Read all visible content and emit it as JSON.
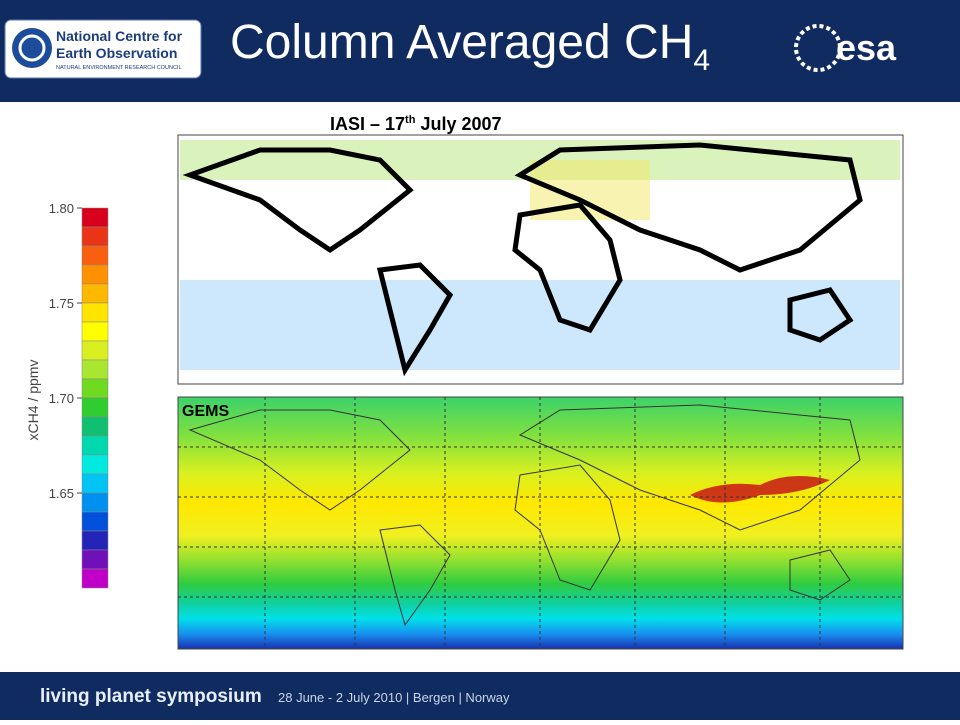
{
  "header": {
    "logo_line1": "National Centre for",
    "logo_line2": "Earth Observation",
    "logo_line3": "NATURAL ENVIRONMENT RESEARCH COUNCIL",
    "title": "Column Averaged CH",
    "title_subscript": "4",
    "esa": "esa"
  },
  "maps": {
    "top_title": "IASI – 17",
    "top_title_sup": "th",
    "top_title_rest": " July 2007",
    "bottom_label": "GEMS"
  },
  "colorbar": {
    "label": "xCH4 / ppmv",
    "lim": [
      1.6,
      1.8
    ],
    "ticks": [
      {
        "value": 1.8,
        "label": "1.80"
      },
      {
        "value": 1.75,
        "label": "1.75"
      },
      {
        "value": 1.7,
        "label": "1.70"
      },
      {
        "value": 1.65,
        "label": "1.65"
      }
    ],
    "colors": [
      "#d8001c",
      "#ea3418",
      "#f86010",
      "#ff9000",
      "#ffb800",
      "#ffe400",
      "#ffff00",
      "#d8f020",
      "#a8e630",
      "#70da20",
      "#30cc30",
      "#10c070",
      "#00d8b0",
      "#00eae0",
      "#00c4f4",
      "#0090f0",
      "#0050dc",
      "#2424b8",
      "#7010b8",
      "#c000c8"
    ]
  },
  "footer": {
    "event": "living planet symposium",
    "details": "28 June - 2 July 2010 | Bergen | Norway"
  }
}
